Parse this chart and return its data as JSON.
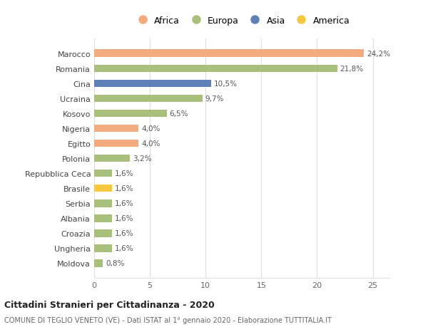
{
  "categories": [
    "Marocco",
    "Romania",
    "Cina",
    "Ucraina",
    "Kosovo",
    "Nigeria",
    "Egitto",
    "Polonia",
    "Repubblica Ceca",
    "Brasile",
    "Serbia",
    "Albania",
    "Croazia",
    "Ungheria",
    "Moldova"
  ],
  "values": [
    24.2,
    21.8,
    10.5,
    9.7,
    6.5,
    4.0,
    4.0,
    3.2,
    1.6,
    1.6,
    1.6,
    1.6,
    1.6,
    1.6,
    0.8
  ],
  "colors": [
    "#F2AA7E",
    "#A8C07C",
    "#6080B8",
    "#A8C07C",
    "#A8C07C",
    "#F2AA7E",
    "#F2AA7E",
    "#A8C07C",
    "#A8C07C",
    "#F5C842",
    "#A8C07C",
    "#A8C07C",
    "#A8C07C",
    "#A8C07C",
    "#A8C07C"
  ],
  "legend_labels": [
    "Africa",
    "Europa",
    "Asia",
    "America"
  ],
  "legend_colors": [
    "#F2AA7E",
    "#A8C07C",
    "#6080B8",
    "#F5C842"
  ],
  "labels": [
    "24,2%",
    "21,8%",
    "10,5%",
    "9,7%",
    "6,5%",
    "4,0%",
    "4,0%",
    "3,2%",
    "1,6%",
    "1,6%",
    "1,6%",
    "1,6%",
    "1,6%",
    "1,6%",
    "0,8%"
  ],
  "title_line1": "Cittadini Stranieri per Cittadinanza - 2020",
  "title_line2": "COMUNE DI TEGLIO VENETO (VE) - Dati ISTAT al 1° gennaio 2020 - Elaborazione TUTTITALIA.IT",
  "xlim": [
    0,
    26.5
  ],
  "xticks": [
    0,
    5,
    10,
    15,
    20,
    25
  ],
  "background_color": "#ffffff",
  "grid_color": "#dddddd",
  "bar_height": 0.5
}
